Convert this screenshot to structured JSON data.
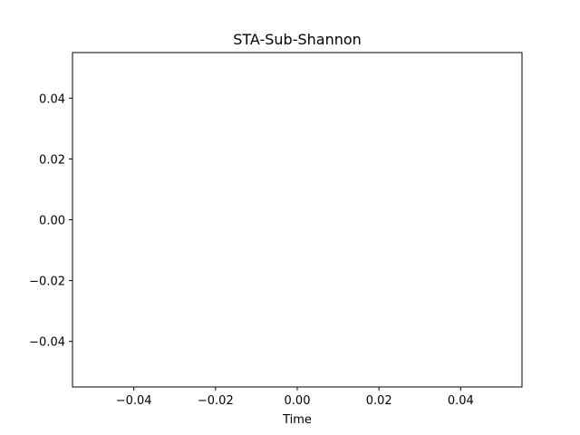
{
  "chart_data": {
    "type": "line",
    "title": "STA-Sub-Shannon",
    "xlabel": "Time",
    "ylabel": "",
    "xlim": [
      -0.055,
      0.055
    ],
    "ylim": [
      -0.055,
      0.055
    ],
    "xticks": [
      -0.04,
      -0.02,
      0.0,
      0.02,
      0.04
    ],
    "xtick_labels": [
      "−0.04",
      "−0.02",
      "0.00",
      "0.02",
      "0.04"
    ],
    "yticks": [
      -0.04,
      -0.02,
      0.0,
      0.02,
      0.04
    ],
    "ytick_labels": [
      "−0.04",
      "−0.02",
      "0.00",
      "0.02",
      "0.04"
    ],
    "grid": false,
    "series": [
      {
        "values": []
      }
    ]
  }
}
